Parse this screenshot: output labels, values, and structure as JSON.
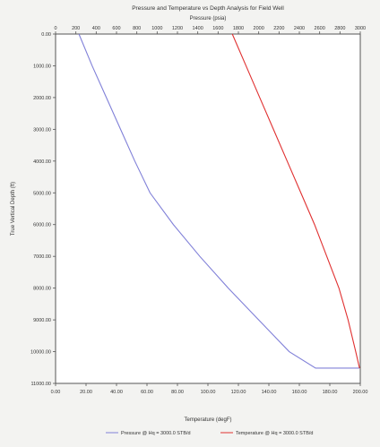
{
  "chart_data": {
    "type": "line",
    "title": "Pressure and Temperature vs Depth Analysis for Field Well",
    "x_top": {
      "label": "Pressure (psia)",
      "range": [
        0,
        3000
      ],
      "ticks": [
        0,
        200,
        400,
        600,
        800,
        1000,
        1200,
        1400,
        1600,
        1800,
        2000,
        2200,
        2400,
        2600,
        2800,
        3000
      ],
      "tick_labels": [
        "0",
        "200",
        "400",
        "600",
        "800",
        "1000",
        "1200",
        "1400",
        "1600",
        "1800",
        "2000",
        "2200",
        "2400",
        "2600",
        "2800",
        "3000"
      ]
    },
    "x_bottom": {
      "label": "Temperature (degF)",
      "range": [
        0,
        200
      ],
      "ticks": [
        0,
        20,
        40,
        60,
        80,
        100,
        120,
        140,
        160,
        180,
        200
      ],
      "tick_labels": [
        "0.00",
        "20.00",
        "40.00",
        "60.00",
        "80.00",
        "100.00",
        "120.00",
        "140.00",
        "160.00",
        "180.00",
        "200.00"
      ]
    },
    "y": {
      "label": "True Vertical Depth (ft)",
      "range": [
        0,
        11000
      ],
      "inverted": true,
      "ticks": [
        0,
        1000,
        2000,
        3000,
        4000,
        5000,
        6000,
        7000,
        8000,
        9000,
        10000,
        11000
      ],
      "tick_labels": [
        "0.00",
        "1000.00",
        "2000.00",
        "3000.00",
        "4000.00",
        "5000.00",
        "6000.00",
        "7000.00",
        "8000.00",
        "9000.00",
        "10000.00",
        "11000.00"
      ]
    },
    "series": [
      {
        "name": "Pressure @ Hq = 3000.0 STB/d",
        "axis": "top",
        "color": "#8080d8",
        "points": [
          [
            230,
            0
          ],
          [
            360,
            1000
          ],
          [
            500,
            2000
          ],
          [
            640,
            3000
          ],
          [
            780,
            4000
          ],
          [
            930,
            5000
          ],
          [
            1160,
            6000
          ],
          [
            1420,
            7000
          ],
          [
            1700,
            8000
          ],
          [
            2000,
            9000
          ],
          [
            2300,
            10000
          ],
          [
            2560,
            10520
          ],
          [
            2990,
            10520
          ]
        ]
      },
      {
        "name": "Temperature @ Hq = 3000.0 STB/d",
        "axis": "bottom",
        "color": "#e03030",
        "points": [
          [
            116,
            0
          ],
          [
            125,
            1000
          ],
          [
            134,
            2000
          ],
          [
            143,
            3000
          ],
          [
            152,
            4000
          ],
          [
            161,
            5000
          ],
          [
            170,
            6000
          ],
          [
            178,
            7000
          ],
          [
            186,
            8000
          ],
          [
            192,
            9000
          ],
          [
            197,
            10000
          ],
          [
            199.5,
            10520
          ]
        ]
      }
    ],
    "legend_position": "bottom-center",
    "grid": false
  }
}
